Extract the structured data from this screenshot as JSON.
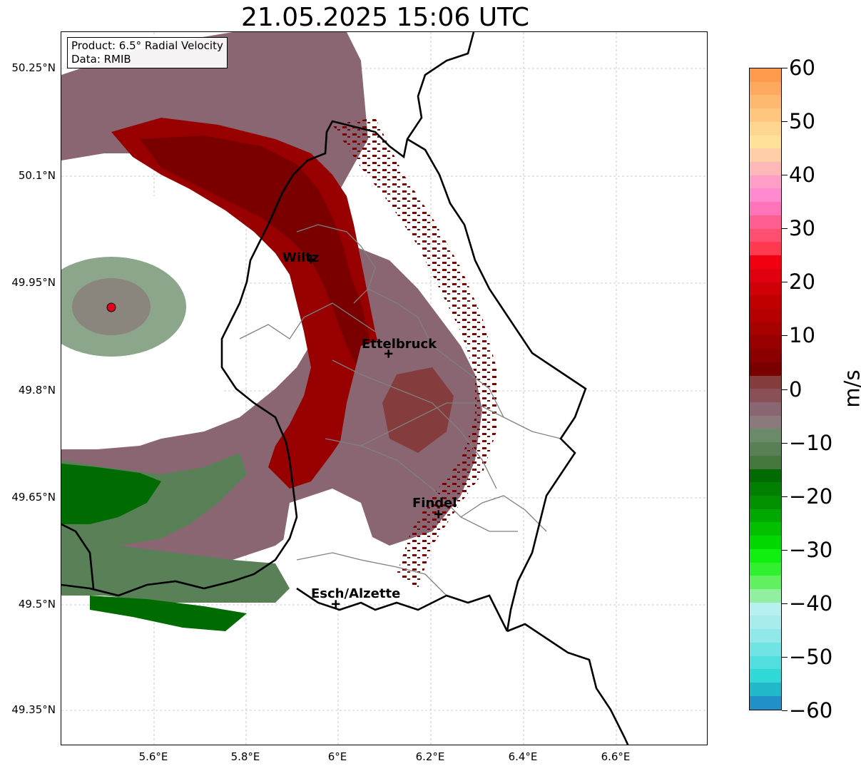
{
  "title": "21.05.2025 15:06 UTC",
  "info": {
    "product": "Product: 6.5° Radial Velocity",
    "data": "Data: RMIB"
  },
  "lat_labels": [
    "50.25°N",
    "50.1°N",
    "49.95°N",
    "49.8°N",
    "49.65°N",
    "49.5°N",
    "49.35°N"
  ],
  "lon_labels": [
    "5.6°E",
    "5.8°E",
    "6°E",
    "6.2°E",
    "6.4°E",
    "6.6°E"
  ],
  "cities": [
    {
      "name": "Wiltz",
      "lon": 5.93,
      "lat": 49.97
    },
    {
      "name": "Ettelbruck",
      "lon": 6.1,
      "lat": 49.85
    },
    {
      "name": "Findel",
      "lon": 6.21,
      "lat": 49.63
    },
    {
      "name": "Esch/Alzette",
      "lon": 5.99,
      "lat": 49.5
    }
  ],
  "radar_site": {
    "lon": 5.51,
    "lat": 49.92,
    "color": "#e0001a"
  },
  "colorbar": {
    "unit": "m/s",
    "min": -60,
    "max": 60,
    "ticks": [
      "60",
      "50",
      "40",
      "30",
      "20",
      "10",
      "0",
      "−10",
      "−20",
      "−30",
      "−40",
      "−50",
      "−60"
    ],
    "colors_top_to_bottom": [
      "#ff9a4d",
      "#ffa85f",
      "#ffb870",
      "#ffc67f",
      "#ffd68f",
      "#ffe29a",
      "#ffd0a8",
      "#ffb8b8",
      "#ff9fc8",
      "#ff8ad0",
      "#ff74b8",
      "#ff5f90",
      "#ff4f70",
      "#ff3a50",
      "#f00010",
      "#e00010",
      "#d00008",
      "#c00000",
      "#b40000",
      "#a60000",
      "#980000",
      "#8a0000",
      "#7a0000",
      "#843c3c",
      "#8a5058",
      "#8a6672",
      "#8a7a7c",
      "#6a8a6a",
      "#588056",
      "#46783e",
      "#006b00",
      "#007f00",
      "#009000",
      "#00a800",
      "#00c000",
      "#00d800",
      "#10f010",
      "#30f030",
      "#60f060",
      "#90f0a0",
      "#b8f0f0",
      "#a8ecec",
      "#90e8e8",
      "#70e4e4",
      "#50dede",
      "#30d8d8",
      "#22b8cc",
      "#2090c8"
    ]
  },
  "colors": {
    "pos_strong": "#7a0000",
    "pos_mid": "#980000",
    "pos_weak": "#843c3c",
    "zero": "#8a6672",
    "neg_weak": "#5a8058",
    "neg_strong": "#006b00",
    "border_country": "#000000",
    "border_admin": "#808080"
  }
}
